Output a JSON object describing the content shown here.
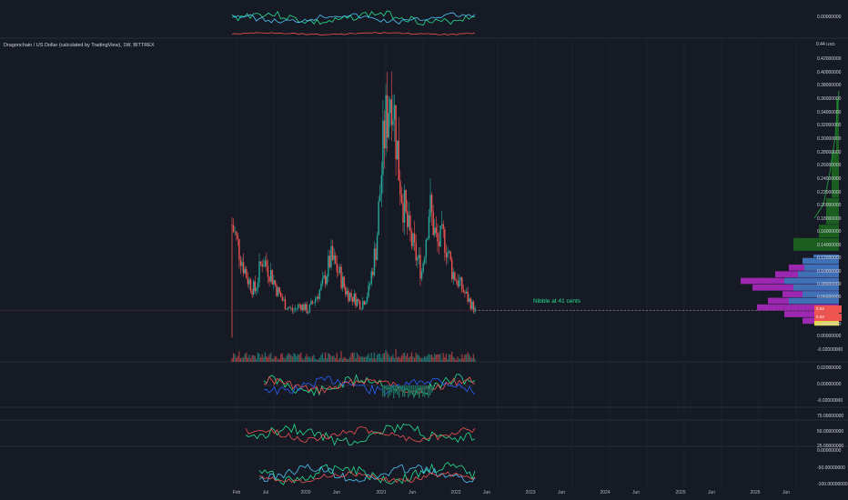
{
  "chart_header": {
    "title": "Dragonchain / US Dollar (calculated by TradingView), 1W, BITTREX",
    "currency": "USD"
  },
  "annotation": {
    "text": "Nibble at 41 cents"
  },
  "price_axis": {
    "ticks": [
      "0.44",
      "0.42000000",
      "0.40000000",
      "0.38000000",
      "0.36000000",
      "0.34000000",
      "0.32000000",
      "0.30000000",
      "0.28000000",
      "0.26000000",
      "0.24000000",
      "0.22000000",
      "0.20000000",
      "0.18000000",
      "0.16000000",
      "0.14000000",
      "0.12000000",
      "0.10000000",
      "0.08000000",
      "0.06000000",
      "0.04000000",
      "0.02000000",
      "0.00000000",
      "-0.02000000"
    ],
    "price_tags": [
      "0.04",
      "0.03"
    ]
  },
  "top_pane_axis": {
    "ticks": [
      "0.00000000"
    ]
  },
  "osc1_axis": {
    "ticks": [
      "0.02000000",
      "0.00000000",
      "-0.02000000"
    ]
  },
  "osc2_axis": {
    "ticks": [
      "75.00000000",
      "50.00000000",
      "25.00000000"
    ]
  },
  "osc3_axis": {
    "ticks": [
      "0.00000000",
      "-50.00000000",
      "-100.00000000"
    ]
  },
  "time_axis": {
    "labels": [
      "Feb",
      "Jul",
      "2020",
      "Jun",
      "2021",
      "Jun",
      "2022",
      "Jun",
      "2023",
      "Jun",
      "2024",
      "Jun",
      "2025",
      "Jun",
      "2026",
      "Jun"
    ]
  },
  "colors": {
    "background": "#161a25",
    "up": "#26a69a",
    "down": "#ef5350",
    "annotation": "#26e08f",
    "profile_purple": "#9c27b0",
    "profile_blue": "#3f6fb5",
    "profile_green": "#1b5e20"
  },
  "chart_data": {
    "type": "candlestick",
    "title": "Dragonchain / US Dollar (calculated by TradingView), 1W, BITTREX",
    "x_range": [
      "2019-02",
      "2026-08"
    ],
    "ylim": [
      -0.03,
      0.44
    ],
    "approx_close_path": [
      0.17,
      0.13,
      0.09,
      0.07,
      0.12,
      0.1,
      0.07,
      0.05,
      0.04,
      0.05,
      0.04,
      0.06,
      0.08,
      0.12,
      0.1,
      0.07,
      0.06,
      0.05,
      0.07,
      0.14,
      0.3,
      0.39,
      0.25,
      0.17,
      0.13,
      0.1,
      0.2,
      0.14,
      0.15,
      0.1,
      0.08,
      0.06,
      0.041
    ],
    "annotations": [
      {
        "text": "Nibble at 41 cents",
        "y": 0.041
      }
    ]
  }
}
